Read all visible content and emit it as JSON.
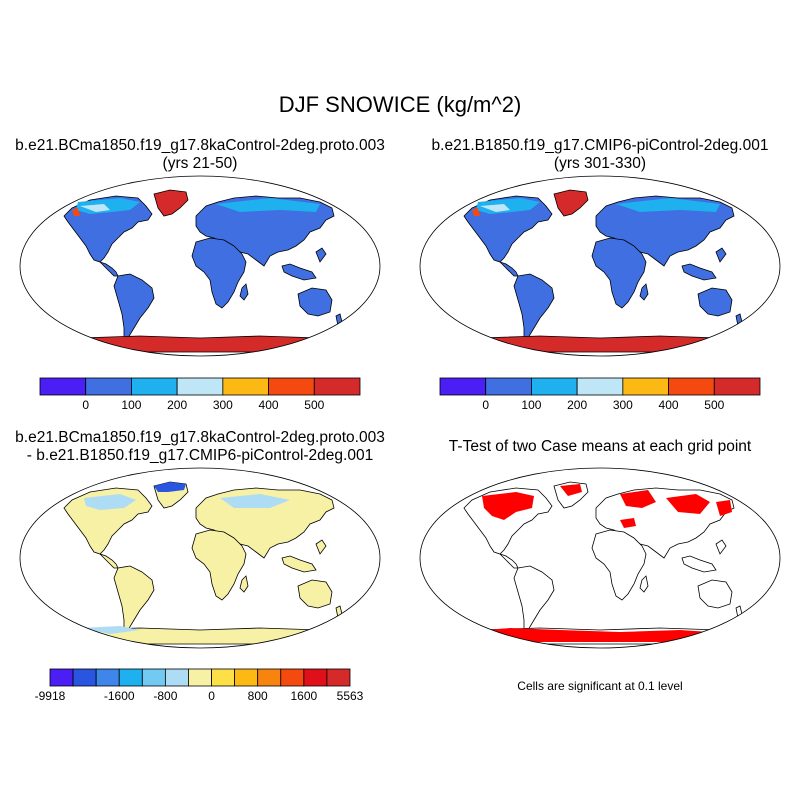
{
  "title": "DJF SNOWICE (kg/m^2)",
  "panels": [
    {
      "id": "case1",
      "title_line1": "b.e21.BCma1850.f19_g17.8kaControl-2deg.proto.003",
      "title_line2": "(yrs 21-50)",
      "colorbar": {
        "colors": [
          "#4b1ef5",
          "#3f6fe0",
          "#1fb0f0",
          "#bfe6f7",
          "#fdb913",
          "#f54a0f",
          "#d42a2a"
        ],
        "tick_labels": [
          "0",
          "100",
          "200",
          "300",
          "400",
          "500"
        ]
      }
    },
    {
      "id": "case2",
      "title_line1": "b.e21.B1850.f19_g17.CMIP6-piControl-2deg.001",
      "title_line2": "(yrs 301-330)",
      "colorbar": {
        "colors": [
          "#4b1ef5",
          "#3f6fe0",
          "#1fb0f0",
          "#bfe6f7",
          "#fdb913",
          "#f54a0f",
          "#d42a2a"
        ],
        "tick_labels": [
          "0",
          "100",
          "200",
          "300",
          "400",
          "500"
        ]
      }
    },
    {
      "id": "difference",
      "title_line1": "b.e21.BCma1850.f19_g17.8kaControl-2deg.proto.003",
      "title_line2": "- b.e21.B1850.f19_g17.CMIP6-piControl-2deg.001",
      "colorbar": {
        "colors": [
          "#4b1ef5",
          "#2a55e0",
          "#3f86ea",
          "#1fb0f0",
          "#72c9f2",
          "#aedcf4",
          "#f7f1a6",
          "#fde047",
          "#fdb913",
          "#f88410",
          "#f54a0f",
          "#e0101a",
          "#d42a2a"
        ],
        "tick_labels": [
          "-9918",
          "-1600",
          "-800",
          "0",
          "800",
          "1600",
          "5563"
        ]
      }
    },
    {
      "id": "ttest",
      "title_line1": "T-Test of two Case means at each grid point",
      "note": "Cells are significant at 0.1 level",
      "significant_color": "#ff0000"
    }
  ],
  "colors": {
    "land_fill": "#3f6fe0",
    "antarctica_fill": "#d42a2a",
    "greenland_fill": "#d42a2a",
    "diff_land_fill": "#f7f1a6",
    "diff_negative_fill": "#aedcf4",
    "coast": "#000000"
  }
}
